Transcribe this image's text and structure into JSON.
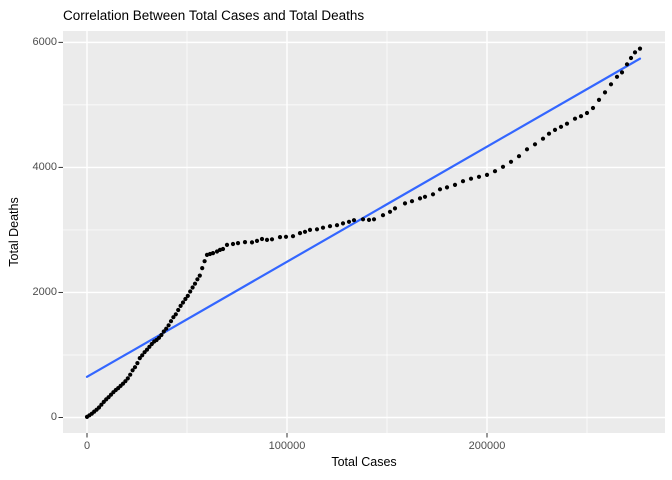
{
  "title": "Correlation Between Total Cases and Total Deaths",
  "chart_data": {
    "type": "scatter",
    "title": "Correlation Between Total Cases and Total Deaths",
    "xlabel": "Total Cases",
    "ylabel": "Total Deaths",
    "xlim": [
      -12000,
      289000
    ],
    "ylim": [
      -248,
      6182
    ],
    "x_major_ticks": [
      0,
      100000,
      200000
    ],
    "x_tick_labels": [
      "0",
      "100000",
      "200000"
    ],
    "x_minor_ticks": [
      50000,
      150000,
      250000
    ],
    "y_major_ticks": [
      0,
      2000,
      4000,
      6000
    ],
    "y_tick_labels": [
      "0",
      "2000",
      "4000",
      "6000"
    ],
    "y_minor_ticks": [
      1000,
      3000,
      5000
    ],
    "grid": true,
    "panel_bg": "#EBEBEB",
    "grid_color": "#FFFFFF",
    "point_color": "#000000",
    "trend_line": {
      "name": "linear-fit",
      "color": "#3366FF",
      "x": [
        0,
        276500
      ],
      "y": [
        650,
        5740
      ]
    },
    "points": [
      [
        0,
        10
      ],
      [
        1200,
        35
      ],
      [
        2400,
        60
      ],
      [
        3600,
        95
      ],
      [
        4800,
        125
      ],
      [
        6000,
        160
      ],
      [
        7200,
        205
      ],
      [
        8400,
        250
      ],
      [
        9600,
        290
      ],
      [
        10800,
        325
      ],
      [
        12000,
        365
      ],
      [
        13200,
        405
      ],
      [
        14400,
        440
      ],
      [
        15600,
        470
      ],
      [
        16800,
        505
      ],
      [
        18000,
        540
      ],
      [
        19200,
        580
      ],
      [
        20400,
        625
      ],
      [
        21600,
        685
      ],
      [
        22800,
        755
      ],
      [
        24000,
        805
      ],
      [
        25200,
        870
      ],
      [
        26400,
        950
      ],
      [
        27600,
        995
      ],
      [
        28800,
        1045
      ],
      [
        30000,
        1085
      ],
      [
        31200,
        1130
      ],
      [
        32400,
        1175
      ],
      [
        33600,
        1215
      ],
      [
        34800,
        1240
      ],
      [
        36000,
        1275
      ],
      [
        37200,
        1320
      ],
      [
        38400,
        1375
      ],
      [
        39600,
        1420
      ],
      [
        40800,
        1475
      ],
      [
        42000,
        1540
      ],
      [
        43200,
        1605
      ],
      [
        44400,
        1650
      ],
      [
        45600,
        1720
      ],
      [
        46800,
        1785
      ],
      [
        48000,
        1840
      ],
      [
        49200,
        1895
      ],
      [
        50400,
        1945
      ],
      [
        51600,
        2015
      ],
      [
        52800,
        2080
      ],
      [
        54000,
        2140
      ],
      [
        55200,
        2210
      ],
      [
        56400,
        2270
      ],
      [
        57600,
        2390
      ],
      [
        58800,
        2500
      ],
      [
        60000,
        2600
      ],
      [
        61500,
        2615
      ],
      [
        63000,
        2630
      ],
      [
        65000,
        2655
      ],
      [
        66500,
        2680
      ],
      [
        68000,
        2695
      ],
      [
        70000,
        2760
      ],
      [
        73000,
        2775
      ],
      [
        75500,
        2790
      ],
      [
        79000,
        2805
      ],
      [
        82500,
        2800
      ],
      [
        85000,
        2825
      ],
      [
        87500,
        2855
      ],
      [
        90000,
        2840
      ],
      [
        92500,
        2850
      ],
      [
        96500,
        2885
      ],
      [
        99500,
        2890
      ],
      [
        103000,
        2900
      ],
      [
        106500,
        2950
      ],
      [
        109000,
        2970
      ],
      [
        111500,
        3000
      ],
      [
        115000,
        3010
      ],
      [
        118000,
        3035
      ],
      [
        121500,
        3060
      ],
      [
        125000,
        3075
      ],
      [
        128000,
        3105
      ],
      [
        131000,
        3130
      ],
      [
        133500,
        3155
      ],
      [
        138000,
        3170
      ],
      [
        141000,
        3160
      ],
      [
        143500,
        3170
      ],
      [
        148000,
        3235
      ],
      [
        151500,
        3290
      ],
      [
        154000,
        3345
      ],
      [
        159000,
        3425
      ],
      [
        162500,
        3460
      ],
      [
        166500,
        3505
      ],
      [
        169000,
        3530
      ],
      [
        173000,
        3570
      ],
      [
        176500,
        3650
      ],
      [
        180000,
        3680
      ],
      [
        184000,
        3720
      ],
      [
        188000,
        3780
      ],
      [
        192000,
        3820
      ],
      [
        196000,
        3850
      ],
      [
        200000,
        3880
      ],
      [
        204000,
        3940
      ],
      [
        208000,
        4010
      ],
      [
        212000,
        4090
      ],
      [
        216000,
        4180
      ],
      [
        220000,
        4290
      ],
      [
        224000,
        4370
      ],
      [
        228000,
        4460
      ],
      [
        231000,
        4540
      ],
      [
        234000,
        4600
      ],
      [
        237000,
        4650
      ],
      [
        240000,
        4700
      ],
      [
        244000,
        4780
      ],
      [
        247000,
        4820
      ],
      [
        250000,
        4870
      ],
      [
        253000,
        4950
      ],
      [
        256000,
        5080
      ],
      [
        259000,
        5200
      ],
      [
        262000,
        5330
      ],
      [
        265000,
        5450
      ],
      [
        267500,
        5520
      ],
      [
        270000,
        5650
      ],
      [
        272000,
        5750
      ],
      [
        274000,
        5840
      ],
      [
        276500,
        5900
      ]
    ]
  }
}
